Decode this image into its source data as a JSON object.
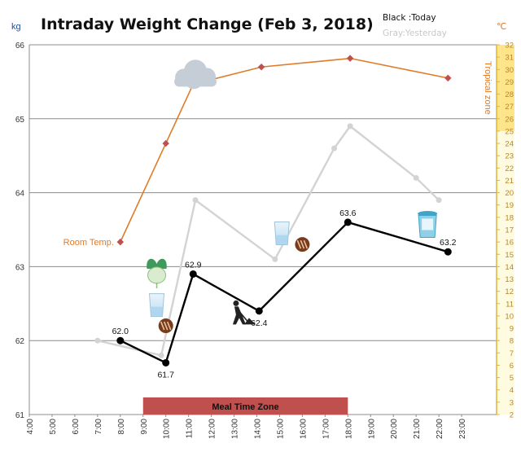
{
  "chart_data": {
    "type": "line",
    "title": "Intraday Weight Change (Feb 3, 2018)",
    "legend": {
      "today": "Black :Today",
      "yesterday": "Gray:Yesterday"
    },
    "y_left": {
      "unit": "kg",
      "min": 61,
      "max": 66,
      "ticks": [
        61,
        62,
        63,
        64,
        65,
        66
      ]
    },
    "y_right": {
      "unit": "℃",
      "min": 2,
      "max": 32,
      "zone_label": "Tropical zone",
      "zone_min": 25
    },
    "x_ticks": [
      "4:00",
      "5:00",
      "6:00",
      "7:00",
      "8:00",
      "9:00",
      "10:00",
      "11:00",
      "12:00",
      "13:00",
      "14:00",
      "15:00",
      "16:00",
      "17:00",
      "18:00",
      "19:00",
      "20:00",
      "21:00",
      "22:00",
      "23:00"
    ],
    "x_range": [
      4,
      24
    ],
    "meal_zone": {
      "label": "Meal Time Zone",
      "start": 9,
      "end": 18
    },
    "series": [
      {
        "name": "Today",
        "color": "#000000",
        "points": [
          {
            "x": 8.0,
            "y": 62.0,
            "label": "62.0"
          },
          {
            "x": 10.0,
            "y": 61.7,
            "label": "61.7"
          },
          {
            "x": 11.2,
            "y": 62.9,
            "label": "62.9"
          },
          {
            "x": 14.1,
            "y": 62.4,
            "label": "62.4"
          },
          {
            "x": 18.0,
            "y": 63.6,
            "label": "63.6"
          },
          {
            "x": 22.4,
            "y": 63.2,
            "label": "63.2"
          }
        ]
      },
      {
        "name": "Yesterday",
        "color": "#d3d3d3",
        "points": [
          {
            "x": 7.0,
            "y": 62.0
          },
          {
            "x": 9.8,
            "y": 61.8
          },
          {
            "x": 11.3,
            "y": 63.9
          },
          {
            "x": 14.8,
            "y": 63.1
          },
          {
            "x": 17.4,
            "y": 64.6
          },
          {
            "x": 18.1,
            "y": 64.9
          },
          {
            "x": 21.0,
            "y": 64.2
          },
          {
            "x": 22.0,
            "y": 63.9
          }
        ]
      },
      {
        "name": "Room Temp.",
        "color": "#e07b28",
        "axis": "right",
        "points": [
          {
            "x": 8.0,
            "y": 16.0
          },
          {
            "x": 10.0,
            "y": 24.0
          },
          {
            "x": 11.2,
            "y": 28.8
          },
          {
            "x": 14.2,
            "y": 30.2
          },
          {
            "x": 18.1,
            "y": 30.9
          },
          {
            "x": 22.4,
            "y": 29.3
          }
        ]
      }
    ],
    "icons": [
      {
        "name": "cloud-icon",
        "x": 11.3,
        "y": 65.6
      },
      {
        "name": "radish-icon",
        "x": 9.6,
        "y": 62.95
      },
      {
        "name": "water-glass-icon",
        "x": 9.6,
        "y": 62.48
      },
      {
        "name": "bread-icon",
        "x": 10.0,
        "y": 62.2
      },
      {
        "name": "gardening-icon",
        "x": 13.3,
        "y": 62.35
      },
      {
        "name": "water-glass-icon",
        "x": 15.1,
        "y": 63.45
      },
      {
        "name": "bread-icon",
        "x": 16.0,
        "y": 63.3
      },
      {
        "name": "trash-can-icon",
        "x": 21.5,
        "y": 63.55
      }
    ]
  }
}
